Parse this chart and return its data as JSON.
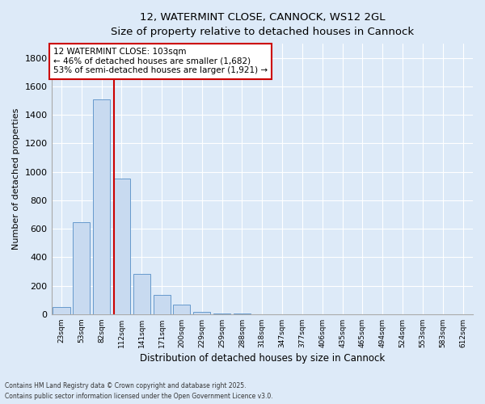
{
  "title_line1": "12, WATERMINT CLOSE, CANNOCK, WS12 2GL",
  "title_line2": "Size of property relative to detached houses in Cannock",
  "xlabel": "Distribution of detached houses by size in Cannock",
  "ylabel": "Number of detached properties",
  "categories": [
    "23sqm",
    "53sqm",
    "82sqm",
    "112sqm",
    "141sqm",
    "171sqm",
    "200sqm",
    "229sqm",
    "259sqm",
    "288sqm",
    "318sqm",
    "347sqm",
    "377sqm",
    "406sqm",
    "435sqm",
    "465sqm",
    "494sqm",
    "524sqm",
    "553sqm",
    "583sqm",
    "612sqm"
  ],
  "values": [
    48,
    645,
    1510,
    950,
    280,
    135,
    65,
    18,
    5,
    2,
    0,
    0,
    0,
    0,
    0,
    0,
    0,
    0,
    0,
    0,
    0
  ],
  "bar_color": "#c8daf0",
  "bar_edge_color": "#6699cc",
  "red_line_x": 2.6,
  "annotation_text": "12 WATERMINT CLOSE: 103sqm\n← 46% of detached houses are smaller (1,682)\n53% of semi-detached houses are larger (1,921) →",
  "annotation_box_color": "#ffffff",
  "annotation_box_edge": "#cc0000",
  "ylim": [
    0,
    1900
  ],
  "yticks": [
    0,
    200,
    400,
    600,
    800,
    1000,
    1200,
    1400,
    1600,
    1800
  ],
  "background_color": "#ddeaf8",
  "plot_bg_color": "#ddeaf8",
  "grid_color": "#ffffff",
  "footer_line1": "Contains HM Land Registry data © Crown copyright and database right 2025.",
  "footer_line2": "Contains public sector information licensed under the Open Government Licence v3.0."
}
